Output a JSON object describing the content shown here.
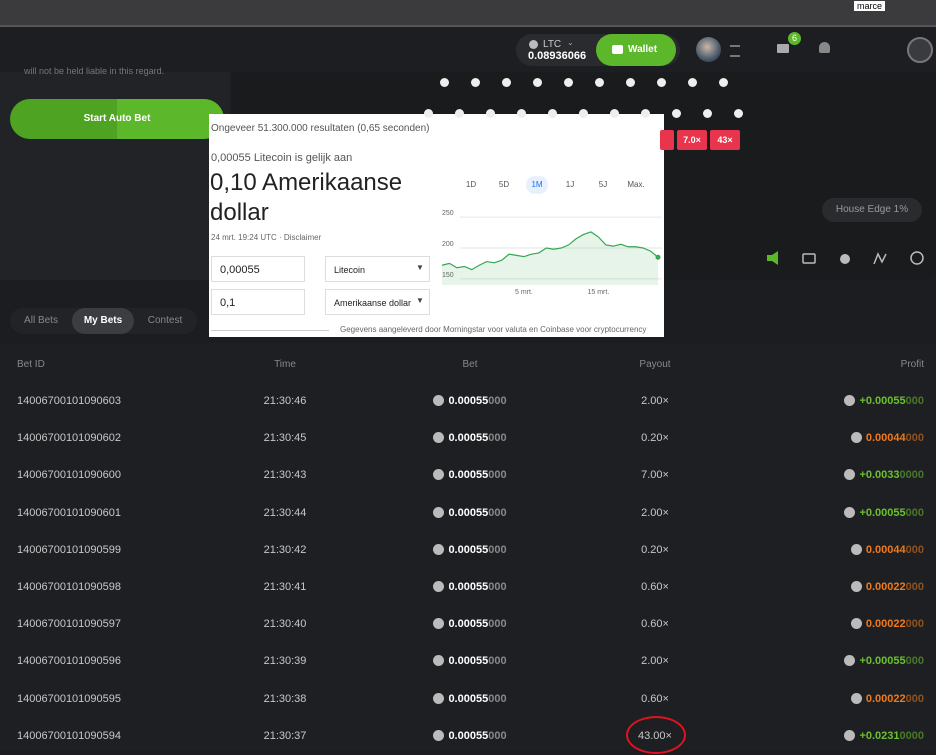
{
  "browser": {
    "user_label": "marce"
  },
  "header": {
    "currency": "LTC",
    "balance": "0.08936066",
    "wallet_button": "Wallet",
    "notification_count": "6"
  },
  "game": {
    "notice": "will not be held liable in this regard.",
    "auto_bet_button": "Start Auto Bet",
    "multipliers": [
      "7.0×",
      "43×"
    ],
    "house_edge": "House Edge 1%"
  },
  "converter": {
    "results": "Ongeveer 51.300.000 resultaten (0,65 seconden)",
    "question": "0,00055 Litecoin is gelijk aan",
    "answer": "0,10 Amerikaanse dollar",
    "timestamp": "24 mrt. 19:24 UTC · Disclaimer",
    "ranges": [
      "1D",
      "5D",
      "1M",
      "1J",
      "5J",
      "Max."
    ],
    "active_range": 2,
    "from_amount": "0,00055",
    "from_currency": "Litecoin",
    "to_amount": "0,1",
    "to_currency": "Amerikaanse dollar",
    "source": "Gegevens aangeleverd door Morningstar voor valuta en Coinbase voor cryptocurrency",
    "chart_data": {
      "type": "line",
      "color": "#34a853",
      "categories": [
        null,
        null,
        null,
        null,
        null,
        null,
        null,
        null,
        null,
        null,
        null,
        "5 mrt.",
        null,
        null,
        null,
        null,
        null,
        null,
        null,
        null,
        null,
        "15 mrt.",
        null,
        null,
        null,
        null,
        null,
        null,
        null,
        null
      ],
      "values": [
        172,
        175,
        168,
        170,
        165,
        172,
        178,
        176,
        180,
        190,
        188,
        186,
        190,
        192,
        200,
        198,
        200,
        205,
        215,
        222,
        226,
        218,
        205,
        203,
        206,
        202,
        202,
        200,
        195,
        185
      ],
      "ylim": [
        140,
        260
      ],
      "yticks": [
        150,
        200,
        250
      ],
      "grid": true
    }
  },
  "bets": {
    "tabs": [
      "All Bets",
      "My Bets",
      "Contest"
    ],
    "active_tab": 1,
    "columns": [
      "Bet ID",
      "Time",
      "Bet",
      "Payout",
      "Profit"
    ],
    "rows": [
      {
        "id": "14006700101090603",
        "time": "21:30:46",
        "bet": "0.00055",
        "bet_pad": "000",
        "payout": "2.00×",
        "profit": "+0.00055",
        "profit_pad": "000",
        "status": "win"
      },
      {
        "id": "14006700101090602",
        "time": "21:30:45",
        "bet": "0.00055",
        "bet_pad": "000",
        "payout": "0.20×",
        "profit": "0.00044",
        "profit_pad": "000",
        "status": "loss"
      },
      {
        "id": "14006700101090600",
        "time": "21:30:43",
        "bet": "0.00055",
        "bet_pad": "000",
        "payout": "7.00×",
        "profit": "+0.0033",
        "profit_pad": "0000",
        "status": "win"
      },
      {
        "id": "14006700101090601",
        "time": "21:30:44",
        "bet": "0.00055",
        "bet_pad": "000",
        "payout": "2.00×",
        "profit": "+0.00055",
        "profit_pad": "000",
        "status": "win"
      },
      {
        "id": "14006700101090599",
        "time": "21:30:42",
        "bet": "0.00055",
        "bet_pad": "000",
        "payout": "0.20×",
        "profit": "0.00044",
        "profit_pad": "000",
        "status": "loss"
      },
      {
        "id": "14006700101090598",
        "time": "21:30:41",
        "bet": "0.00055",
        "bet_pad": "000",
        "payout": "0.60×",
        "profit": "0.00022",
        "profit_pad": "000",
        "status": "loss"
      },
      {
        "id": "14006700101090597",
        "time": "21:30:40",
        "bet": "0.00055",
        "bet_pad": "000",
        "payout": "0.60×",
        "profit": "0.00022",
        "profit_pad": "000",
        "status": "loss"
      },
      {
        "id": "14006700101090596",
        "time": "21:30:39",
        "bet": "0.00055",
        "bet_pad": "000",
        "payout": "2.00×",
        "profit": "+0.00055",
        "profit_pad": "000",
        "status": "win"
      },
      {
        "id": "14006700101090595",
        "time": "21:30:38",
        "bet": "0.00055",
        "bet_pad": "000",
        "payout": "0.60×",
        "profit": "0.00022",
        "profit_pad": "000",
        "status": "loss"
      },
      {
        "id": "14006700101090594",
        "time": "21:30:37",
        "bet": "0.00055",
        "bet_pad": "000",
        "payout": "43.00×",
        "profit": "+0.0231",
        "profit_pad": "0000",
        "status": "win"
      }
    ]
  }
}
